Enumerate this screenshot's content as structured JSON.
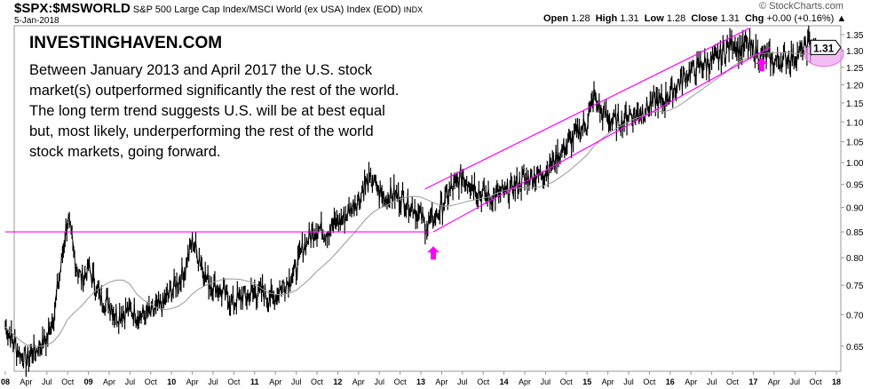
{
  "header": {
    "symbol": "$SPX:$MSWORLD",
    "description": "S&P 500 Large Cap Index/MSCI World (ex USA) Index (EOD)",
    "exchange": "INDX",
    "date": "5-Jan-2018",
    "copyright": "© StockCharts.com"
  },
  "ohlc": {
    "open_label": "Open",
    "open": "1.28",
    "high_label": "High",
    "high": "1.31",
    "low_label": "Low",
    "low": "1.28",
    "close_label": "Close",
    "close": "1.31",
    "chg_label": "Chg",
    "chg": "+0.00 (+0.16%)"
  },
  "annotation": {
    "brand": "INVESTINGHAVEN.COM",
    "text": "Between January 2013 and April 2017 the U.S. stock market(s) outperformed significantly the rest of the world. The long term trend suggests U.S. will be at best equal but, most likely, underperforming the rest of the world stock markets, going forward."
  },
  "chart_data": {
    "type": "line",
    "scale": "log",
    "ylim": [
      0.62,
      1.37
    ],
    "yticks": [
      "0.65",
      "0.70",
      "0.75",
      "0.80",
      "0.85",
      "0.90",
      "0.95",
      "1.00",
      "1.05",
      "1.10",
      "1.15",
      "1.20",
      "1.25",
      "1.30",
      "1.35"
    ],
    "last_value_label": "1.31",
    "xticks": [
      "08",
      "Apr",
      "Jul",
      "Oct",
      "09",
      "Apr",
      "Jul",
      "Oct",
      "10",
      "Apr",
      "Jul",
      "Oct",
      "11",
      "Apr",
      "Jul",
      "Oct",
      "12",
      "Apr",
      "Jul",
      "Oct",
      "13",
      "Apr",
      "Jul",
      "Oct",
      "14",
      "Apr",
      "Jul",
      "Oct",
      "15",
      "Apr",
      "Jul",
      "Oct",
      "16",
      "Apr",
      "Jul",
      "Oct",
      "17",
      "Apr",
      "Jul",
      "Oct",
      "18"
    ],
    "x_start": 2008.0,
    "x_end": 2018.05,
    "series": [
      {
        "name": "$SPX:$MSWORLD",
        "x_step_months": 1,
        "values": [
          0.68,
          0.66,
          0.64,
          0.63,
          0.64,
          0.65,
          0.66,
          0.7,
          0.78,
          0.88,
          0.8,
          0.76,
          0.78,
          0.75,
          0.72,
          0.72,
          0.7,
          0.7,
          0.71,
          0.7,
          0.7,
          0.7,
          0.71,
          0.72,
          0.74,
          0.76,
          0.78,
          0.83,
          0.8,
          0.76,
          0.75,
          0.74,
          0.73,
          0.72,
          0.73,
          0.73,
          0.74,
          0.74,
          0.73,
          0.73,
          0.75,
          0.76,
          0.78,
          0.82,
          0.84,
          0.86,
          0.85,
          0.86,
          0.87,
          0.88,
          0.9,
          0.92,
          0.95,
          0.96,
          0.93,
          0.92,
          0.93,
          0.92,
          0.91,
          0.9,
          0.88,
          0.86,
          0.88,
          0.9,
          0.93,
          0.95,
          0.97,
          0.96,
          0.94,
          0.93,
          0.92,
          0.93,
          0.93,
          0.94,
          0.95,
          0.96,
          0.97,
          0.97,
          0.98,
          1.0,
          1.02,
          1.04,
          1.06,
          1.08,
          1.1,
          1.17,
          1.13,
          1.11,
          1.1,
          1.1,
          1.12,
          1.12,
          1.13,
          1.14,
          1.16,
          1.15,
          1.18,
          1.2,
          1.22,
          1.24,
          1.25,
          1.26,
          1.27,
          1.28,
          1.3,
          1.33,
          1.3,
          1.32,
          1.3,
          1.29,
          1.28,
          1.27,
          1.27,
          1.28,
          1.28,
          1.3,
          1.32,
          1.31
        ]
      },
      {
        "name": "200-day MA",
        "type": "ma",
        "window_months": 10
      }
    ],
    "trendlines": [
      {
        "name": "support 0.85",
        "from": [
          2008.0,
          0.85
        ],
        "to": [
          2013.1,
          0.85
        ]
      },
      {
        "name": "channel lower",
        "from": [
          2013.15,
          0.85
        ],
        "to": [
          2017.2,
          1.31
        ]
      },
      {
        "name": "channel upper",
        "from": [
          2013.05,
          0.94
        ],
        "to": [
          2016.95,
          1.37
        ]
      }
    ],
    "markers": [
      {
        "type": "arrow",
        "x": 2013.15,
        "y": 0.81
      },
      {
        "type": "arrow",
        "x": 2017.1,
        "y": 1.26
      },
      {
        "type": "ellipse",
        "x": 2017.85,
        "y": 1.29
      }
    ],
    "colors": {
      "price": "#000000",
      "ma": "#999999",
      "trend": "#ff00ff",
      "ellipse": "#f0a0f0"
    }
  }
}
